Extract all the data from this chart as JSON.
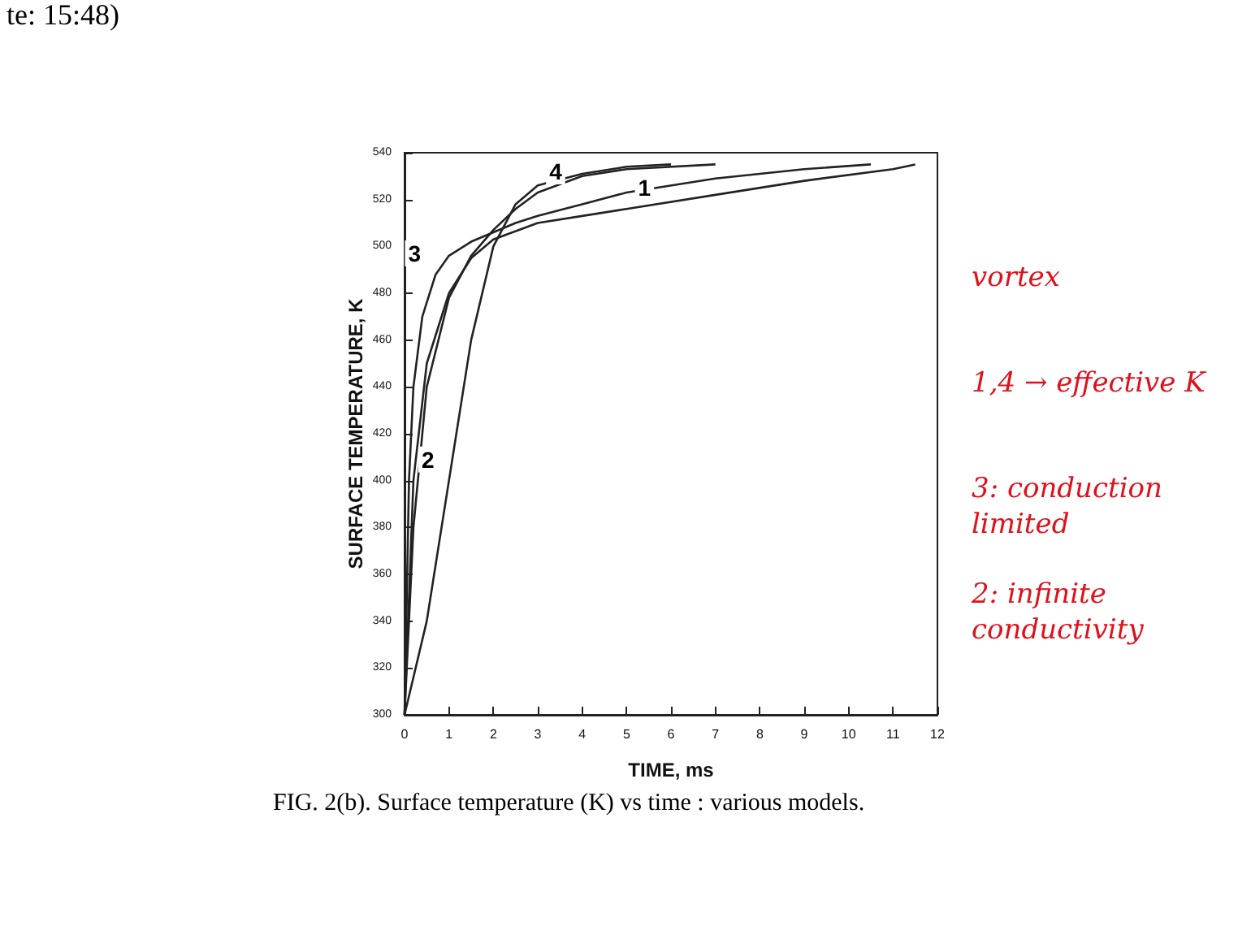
{
  "chart_data": {
    "type": "line",
    "xlabel": "TIME, ms",
    "ylabel": "SURFACE TEMPERATURE, K",
    "xlim": [
      0,
      12
    ],
    "xticks": [
      0,
      1,
      2,
      3,
      4,
      5,
      6,
      7,
      8,
      9,
      10,
      11,
      12
    ],
    "ylim": [
      300,
      540
    ],
    "yticks": [
      300,
      320,
      340,
      360,
      380,
      400,
      420,
      440,
      460,
      480,
      500,
      520,
      540
    ],
    "grid": false,
    "marker": "none",
    "line_style": "solid",
    "series": [
      {
        "color": "#222222",
        "x": [
          0,
          0.2,
          0.5,
          1,
          1.5,
          2,
          3,
          4,
          5,
          7,
          9,
          11,
          11.5
        ],
        "values": [
          300,
          400,
          450,
          480,
          495,
          503,
          510,
          513,
          516,
          522,
          528,
          533,
          535
        ]
      },
      {
        "color": "#222222",
        "x": [
          0,
          0.5,
          1,
          1.5,
          2,
          2.5,
          3,
          4,
          5,
          6
        ],
        "values": [
          300,
          340,
          400,
          460,
          500,
          518,
          526,
          531,
          534,
          535
        ]
      },
      {
        "color": "#222222",
        "x": [
          0,
          0.1,
          0.2,
          0.4,
          0.7,
          1,
          1.5,
          2,
          2.5,
          3,
          4,
          5,
          7,
          9,
          10.5
        ],
        "values": [
          300,
          400,
          440,
          470,
          488,
          496,
          502,
          506,
          510,
          513,
          518,
          523,
          529,
          533,
          535
        ]
      },
      {
        "color": "#222222",
        "x": [
          0,
          0.2,
          0.5,
          1,
          1.5,
          2,
          2.5,
          3,
          4,
          5,
          7
        ],
        "values": [
          300,
          380,
          440,
          478,
          496,
          507,
          516,
          523,
          530,
          533,
          535
        ]
      }
    ],
    "annotations": [
      "te: 15:48)",
      "FIG. 2(b). Surface temperature (K) vs time : various models.",
      "vortex",
      "1,4 → effective K",
      "3: conduction limited",
      "2: infinite conductivity",
      {
        "text": "1",
        "x": 5,
        "y": 516
      },
      {
        "text": "2",
        "x": 1,
        "y": 400
      },
      {
        "text": "3",
        "x": 0.7,
        "y": 488
      },
      {
        "text": "4",
        "x": 3,
        "y": 523
      }
    ]
  }
}
